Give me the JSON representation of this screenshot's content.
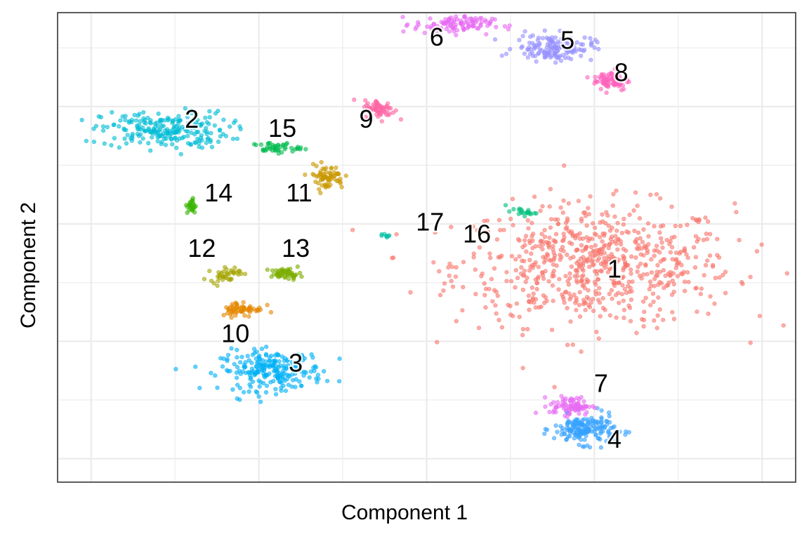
{
  "chart_data": {
    "type": "scatter",
    "title": "",
    "xlabel": "Component 1",
    "ylabel": "Component 2",
    "xlim": [
      -11,
      11
    ],
    "ylim": [
      -5.8,
      10.2
    ],
    "grid": true,
    "legend": "none",
    "tick_labels_visible": false,
    "clusters": [
      {
        "label": "1",
        "color": "#F8766D",
        "center": [
          5.0,
          1.6
        ],
        "n": 700,
        "spread": [
          4.6,
          2.3
        ],
        "label_pos": [
          5.6,
          1.4
        ]
      },
      {
        "label": "2",
        "color": "#00BCD6",
        "center": [
          -7.8,
          6.2
        ],
        "n": 230,
        "spread": [
          2.1,
          0.7
        ],
        "label_pos": [
          -7.0,
          6.5
        ]
      },
      {
        "label": "3",
        "color": "#00B0F6",
        "center": [
          -4.6,
          -2.0
        ],
        "n": 230,
        "spread": [
          1.7,
          0.75
        ],
        "label_pos": [
          -3.9,
          -1.8
        ]
      },
      {
        "label": "4",
        "color": "#35A2FF",
        "center": [
          4.7,
          -4.0
        ],
        "n": 170,
        "spread": [
          1.0,
          0.55
        ],
        "label_pos": [
          5.6,
          -4.4
        ]
      },
      {
        "label": "5",
        "color": "#9590FF",
        "center": [
          3.8,
          9.0
        ],
        "n": 140,
        "spread": [
          1.3,
          0.5
        ],
        "label_pos": [
          4.2,
          9.2
        ]
      },
      {
        "label": "6",
        "color": "#E76BF3",
        "center": [
          0.8,
          9.8
        ],
        "n": 110,
        "spread": [
          1.3,
          0.35
        ],
        "label_pos": [
          0.3,
          9.3
        ]
      },
      {
        "label": "7",
        "color": "#E76BF3",
        "center": [
          4.3,
          -3.2
        ],
        "n": 80,
        "spread": [
          0.7,
          0.35
        ],
        "label_pos": [
          5.2,
          -2.5
        ]
      },
      {
        "label": "8",
        "color": "#FF62BC",
        "center": [
          5.5,
          7.9
        ],
        "n": 80,
        "spread": [
          0.6,
          0.4
        ],
        "label_pos": [
          5.8,
          8.1
        ]
      },
      {
        "label": "9",
        "color": "#FF65A3",
        "center": [
          -1.4,
          6.9
        ],
        "n": 70,
        "spread": [
          0.5,
          0.35
        ],
        "label_pos": [
          -1.8,
          6.5
        ]
      },
      {
        "label": "10",
        "color": "#E58700",
        "center": [
          -5.5,
          0.1
        ],
        "n": 60,
        "spread": [
          0.7,
          0.3
        ],
        "label_pos": [
          -5.7,
          -0.8
        ]
      },
      {
        "label": "11",
        "color": "#C99800",
        "center": [
          -3.0,
          4.6
        ],
        "n": 70,
        "spread": [
          0.6,
          0.45
        ],
        "label_pos": [
          -3.8,
          4.0
        ]
      },
      {
        "label": "12",
        "color": "#A3A500",
        "center": [
          -6.0,
          1.3
        ],
        "n": 40,
        "spread": [
          0.5,
          0.3
        ],
        "label_pos": [
          -6.7,
          2.1
        ]
      },
      {
        "label": "13",
        "color": "#7CAE00",
        "center": [
          -4.2,
          1.3
        ],
        "n": 50,
        "spread": [
          0.5,
          0.2
        ],
        "label_pos": [
          -3.9,
          2.1
        ]
      },
      {
        "label": "14",
        "color": "#39B600",
        "center": [
          -7.0,
          3.6
        ],
        "n": 25,
        "spread": [
          0.15,
          0.3
        ],
        "label_pos": [
          -6.2,
          4.0
        ]
      },
      {
        "label": "15",
        "color": "#00BB4E",
        "center": [
          -4.5,
          5.6
        ],
        "n": 45,
        "spread": [
          0.8,
          0.2
        ],
        "label_pos": [
          -4.3,
          6.2
        ]
      },
      {
        "label": "16",
        "color": "#00BF7D",
        "center": [
          2.8,
          3.4
        ],
        "n": 20,
        "spread": [
          0.5,
          0.15
        ],
        "label_pos": [
          1.5,
          2.6
        ]
      },
      {
        "label": "17",
        "color": "#00C1A3",
        "center": [
          -1.2,
          2.6
        ],
        "n": 8,
        "spread": [
          0.2,
          0.05
        ],
        "label_pos": [
          0.1,
          3.0
        ]
      }
    ]
  }
}
